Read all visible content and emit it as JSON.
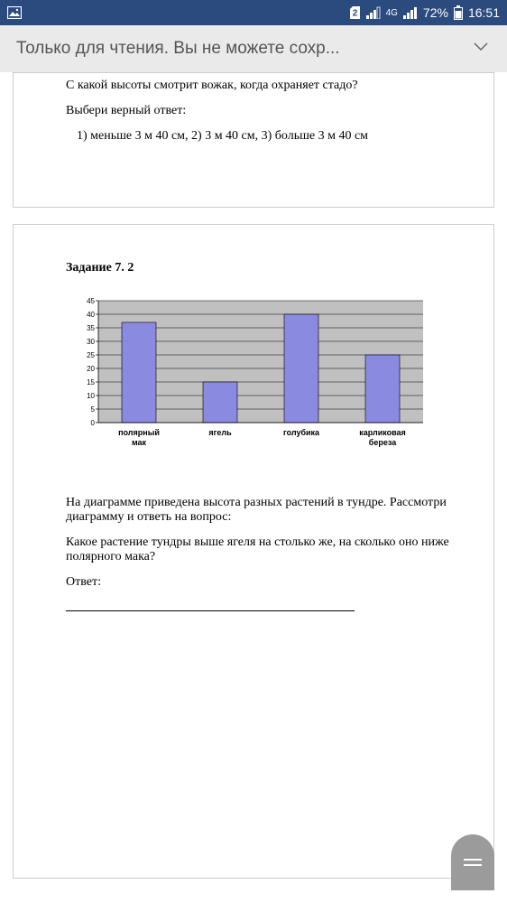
{
  "status_bar": {
    "sim": "2",
    "network": "4G",
    "battery": "72%",
    "time": "16:51"
  },
  "header": {
    "title": "Только для чтения. Вы не можете сохр..."
  },
  "page1": {
    "question": "С какой высоты смотрит вожак, когда охраняет стадо?",
    "choose": "Выбери верный ответ:",
    "options": "1) меньше 3 м 40 см,   2) 3 м 40 см,   3) больше 3 м 40 см"
  },
  "page2": {
    "task_title": "Задание 7. 2",
    "chart": {
      "ymax": 45,
      "ystep": 5,
      "ticks": [
        "45",
        "40",
        "35",
        "30",
        "25",
        "20",
        "15",
        "10",
        "5",
        "0"
      ],
      "bars": [
        {
          "label": "полярный мак",
          "value": 37
        },
        {
          "label": "ягель",
          "value": 15
        },
        {
          "label": "голубика",
          "value": 40
        },
        {
          "label": "карликовая береза",
          "value": 25
        }
      ],
      "bar_fill": "#8a8ae0",
      "bar_stroke": "#000000",
      "plot_fill": "#c0c0c0",
      "grid_color": "#000000"
    },
    "p1": "На диаграмме приведена высота разных растений в тундре. Рассмотри диаграмму и ответь на вопрос:",
    "p2": "Какое растение тундры выше ягеля на столько же, на сколько оно ниже полярного мака?",
    "answer_label": "Ответ:"
  }
}
